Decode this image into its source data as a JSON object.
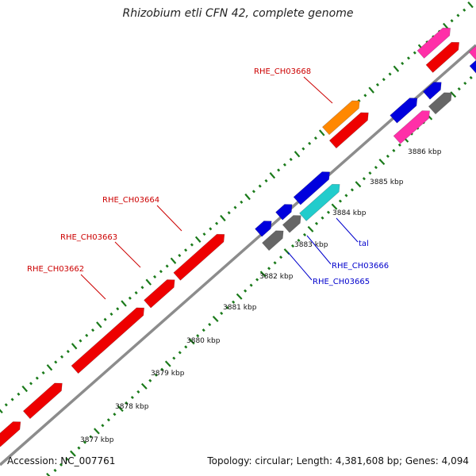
{
  "title": "Rhizobium etli CFN 42, complete genome",
  "footer": {
    "accession": "Accession: NC_007761",
    "summary": "Topology: circular; Length: 4,381,608 bp; Genes: 4,094"
  },
  "colors": {
    "backbone": "#8c8c8c",
    "tick": "#1a7a1a",
    "red": "#ee0000",
    "orange": "#ff8800",
    "blue": "#0000dd",
    "magenta": "#ff2fa8",
    "gray": "#666666",
    "cyan": "#22cccc",
    "label_red": "#cc0000",
    "label_blue": "#0000cc"
  },
  "scale": {
    "labels": [
      {
        "text": "3877 kbp",
        "kbp": 3877
      },
      {
        "text": "3878 kbp",
        "kbp": 3878
      },
      {
        "text": "3879 kbp",
        "kbp": 3879
      },
      {
        "text": "3880 kbp",
        "kbp": 3880
      },
      {
        "text": "3881 kbp",
        "kbp": 3881
      },
      {
        "text": "3882 kbp",
        "kbp": 3882
      },
      {
        "text": "3883 kbp",
        "kbp": 3883
      },
      {
        "text": "3884 kbp",
        "kbp": 3884
      },
      {
        "text": "3885 kbp",
        "kbp": 3885
      },
      {
        "text": "3886 kbp",
        "kbp": 3886
      }
    ]
  },
  "gene_labels": [
    {
      "text": "RHE_CH03668",
      "color": "label_red"
    },
    {
      "text": "RHE_CH03664",
      "color": "label_red"
    },
    {
      "text": "RHE_CH03663",
      "color": "label_red"
    },
    {
      "text": "RHE_CH03662",
      "color": "label_red"
    },
    {
      "text": "tal",
      "color": "label_blue"
    },
    {
      "text": "RHE_CH03666",
      "color": "label_blue"
    },
    {
      "text": "RHE_CH03665",
      "color": "label_blue"
    }
  ]
}
